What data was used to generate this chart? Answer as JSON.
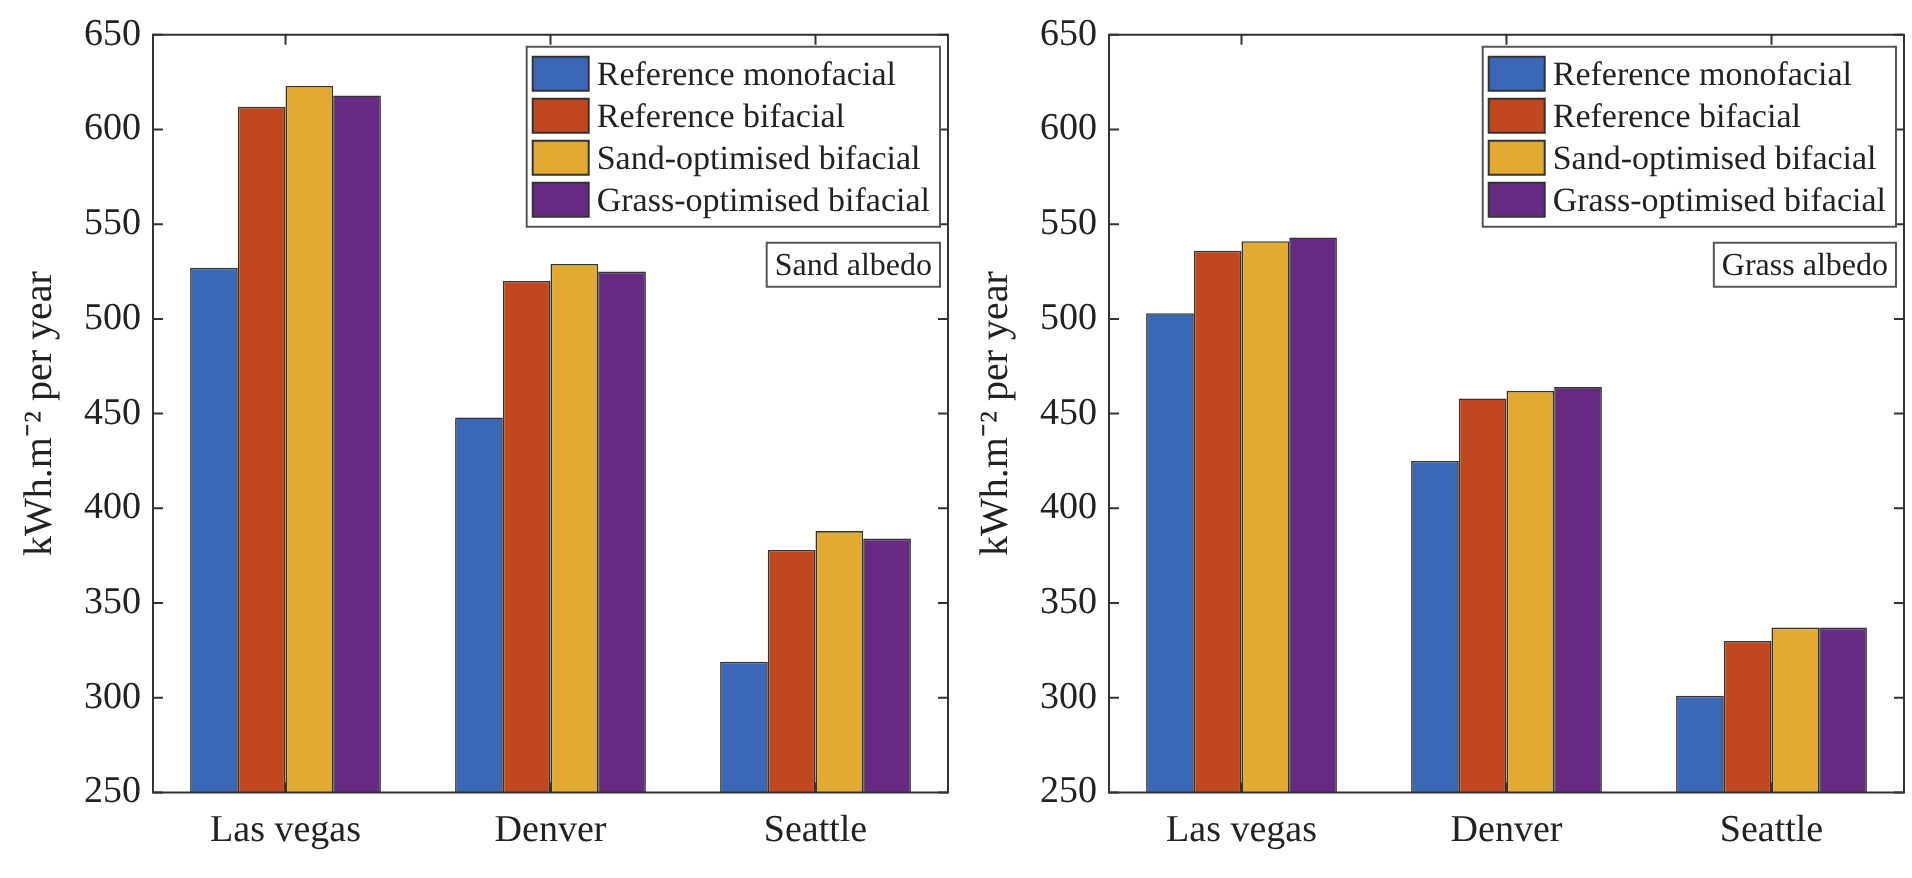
{
  "chart_data": [
    {
      "type": "bar",
      "categories": [
        "Las vegas",
        "Denver",
        "Seattle"
      ],
      "ylabel": "kWh.m⁻² per year",
      "ylim": [
        250,
        650
      ],
      "yticks": [
        250,
        300,
        350,
        400,
        450,
        500,
        550,
        600,
        650
      ],
      "grid": false,
      "legend": "top right",
      "annotations": [
        "Sand albedo"
      ],
      "series": [
        {
          "name": "Reference monofacial",
          "color": "#3a67b6",
          "values": [
            527,
            448,
            319
          ]
        },
        {
          "name": "Reference bifacial",
          "color": "#c1481e",
          "values": [
            612,
            520,
            378
          ]
        },
        {
          "name": "Sand-optimised bifacial",
          "color": "#e3aa32",
          "values": [
            623,
            529,
            388
          ]
        },
        {
          "name": "Grass-optimised bifacial",
          "color": "#672a82",
          "values": [
            618,
            525,
            384
          ]
        }
      ]
    },
    {
      "type": "bar",
      "categories": [
        "Las vegas",
        "Denver",
        "Seattle"
      ],
      "ylabel": "kWh.m⁻² per year",
      "ylim": [
        250,
        650
      ],
      "yticks": [
        250,
        300,
        350,
        400,
        450,
        500,
        550,
        600,
        650
      ],
      "grid": false,
      "legend": "top right",
      "annotations": [
        "Grass albedo"
      ],
      "series": [
        {
          "name": "Reference monofacial",
          "color": "#3a67b6",
          "values": [
            503,
            425,
            301
          ]
        },
        {
          "name": "Reference bifacial",
          "color": "#c1481e",
          "values": [
            536,
            458,
            330
          ]
        },
        {
          "name": "Sand-optimised bifacial",
          "color": "#e3aa32",
          "values": [
            541,
            462,
            337
          ]
        },
        {
          "name": "Grass-optimised bifacial",
          "color": "#672a82",
          "values": [
            543,
            464,
            337
          ]
        }
      ]
    }
  ]
}
